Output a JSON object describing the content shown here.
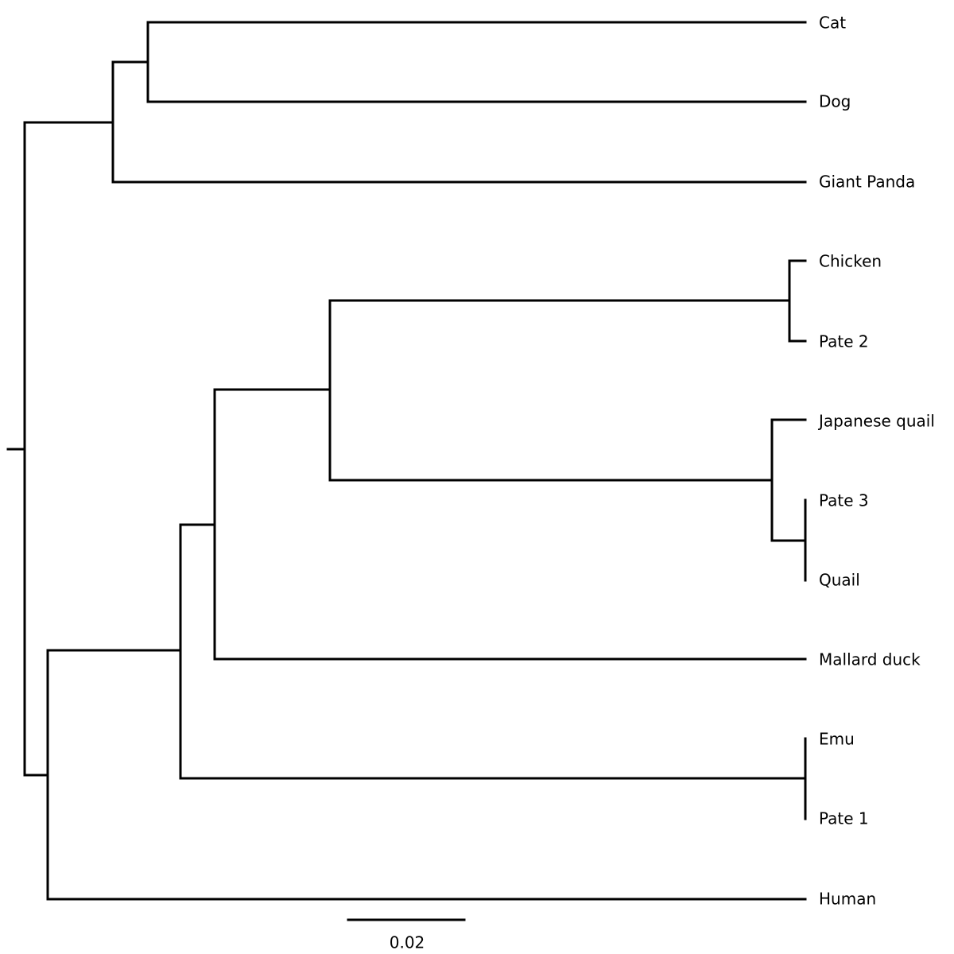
{
  "tree": {
    "leaves": [
      "Cat",
      "Dog",
      "Giant Panda",
      "Chicken",
      "Pate 2",
      "Japanese quail",
      "Pate 3",
      "Quail",
      "Mallard duck",
      "Emu",
      "Pate 1",
      "Human"
    ],
    "scale_bar": 0.02
  }
}
